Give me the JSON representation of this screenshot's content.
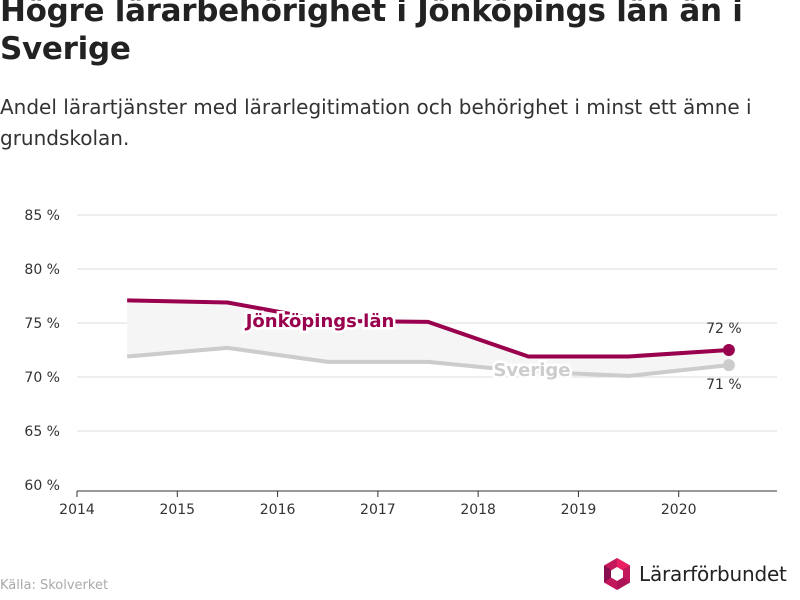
{
  "header": {
    "title": "Högre lärarbehörighet i Jönköpings län än i Sverige",
    "subtitle": "Andel lärartjänster med lärarlegitimation och behörighet i minst ett ämne i grundskolan."
  },
  "footer": {
    "source": "Källa: Skolverket",
    "logo_text": "Lärarförbundet",
    "logo_icon": "hexagon-icon"
  },
  "colors": {
    "jonkoping": "#99004d",
    "sverige": "#cccccc",
    "band": "#f5f5f5",
    "grid": "#dddddd",
    "axis": "#333333"
  },
  "chart_data": {
    "type": "line",
    "title": "Högre lärarbehörighet i Jönköpings län än i Sverige",
    "subtitle": "Andel lärartjänster med lärarlegitimation och behörighet i minst ett ämne i grundskolan.",
    "xlabel": "",
    "ylabel": "",
    "x": [
      2014.5,
      2015.5,
      2016.5,
      2017.5,
      2018.5,
      2019.5,
      2020.5
    ],
    "xlim": [
      2014,
      2020.98
    ],
    "ylim": [
      60,
      85
    ],
    "xticks": [
      2014,
      2015,
      2016,
      2017,
      2018,
      2019,
      2020
    ],
    "yticks": [
      60,
      65,
      70,
      75,
      80,
      85
    ],
    "ytick_suffix": " %",
    "grid": "horizontal",
    "legend": "inline labels",
    "series": [
      {
        "name": "Jönköpings län",
        "values": [
          77.1,
          76.9,
          75.2,
          75.1,
          71.9,
          71.9,
          72.5
        ],
        "end_label": "72 %"
      },
      {
        "name": "Sverige",
        "values": [
          71.9,
          72.7,
          71.4,
          71.4,
          70.5,
          70.1,
          71.1
        ],
        "end_label": "71 %"
      }
    ]
  }
}
